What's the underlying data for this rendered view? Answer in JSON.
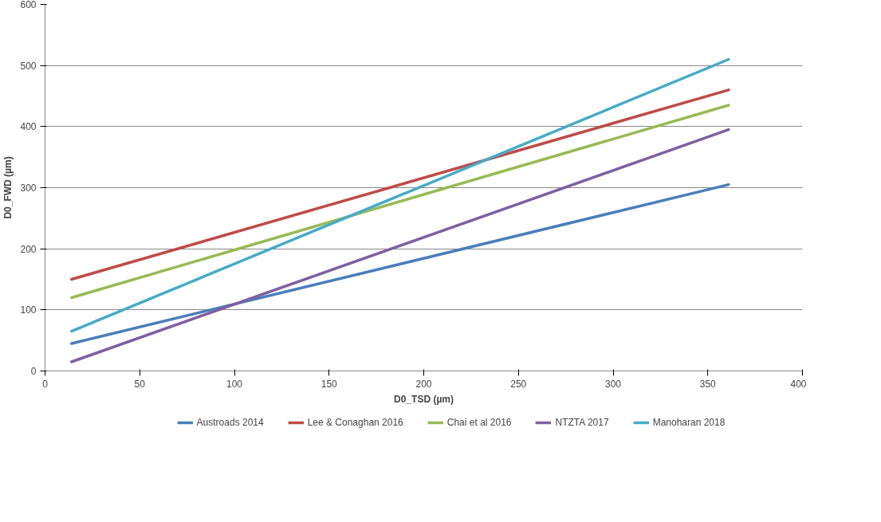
{
  "chart_data": {
    "type": "line",
    "xlabel": "D0_TSD (µm)",
    "ylabel": "D0_FWD (µm)",
    "xlim": [
      0,
      400
    ],
    "xticks": [
      0,
      50,
      100,
      150,
      200,
      250,
      300,
      350,
      400
    ],
    "ylim": [
      0,
      600
    ],
    "yticks": [
      0,
      100,
      200,
      300,
      400,
      500,
      600
    ],
    "grid": "y",
    "legend": "bottom",
    "marker": "none",
    "line_style": "solid",
    "x": [
      14,
      361
    ],
    "series": [
      {
        "name": "Austroads 2014",
        "color": "#4a7ebb",
        "values": [
          45,
          305
        ]
      },
      {
        "name": "Lee & Conaghan 2016",
        "color": "#be4b48",
        "values": [
          150,
          460
        ]
      },
      {
        "name": "Chai et al 2016",
        "color": "#98b954",
        "values": [
          120,
          435
        ]
      },
      {
        "name": "NTZTA 2017",
        "color": "#7d60a0",
        "values": [
          15,
          395
        ]
      },
      {
        "name": "Manoharan 2018",
        "color": "#46aac5",
        "values": [
          65,
          510
        ]
      }
    ]
  }
}
